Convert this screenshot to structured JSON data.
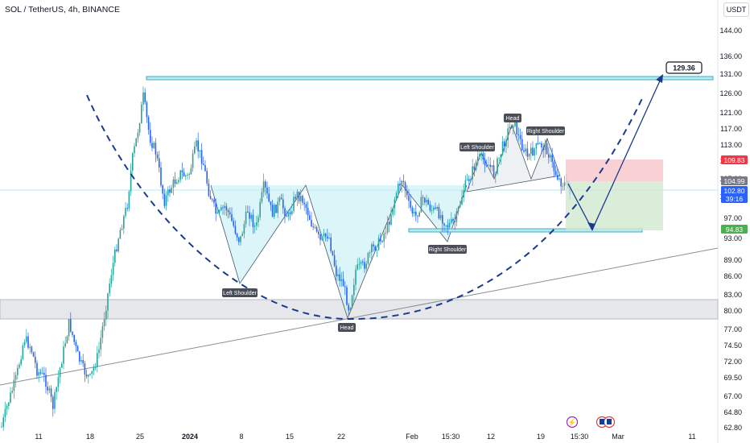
{
  "header": {
    "title": "SOL / TetherUS, 4h, BINANCE",
    "unit": "USDT"
  },
  "chart_data": {
    "type": "candlestick",
    "y_axis": {
      "ticks": [
        144.0,
        136.0,
        131.0,
        126.0,
        121.0,
        117.0,
        113.0,
        109.0,
        105.0,
        101.0,
        97.0,
        93.0,
        89.0,
        86.0,
        83.0,
        80.0,
        77.0,
        74.5,
        72.0,
        69.5,
        67.0,
        64.8,
        62.8
      ]
    },
    "x_axis": {
      "labels": [
        {
          "text": "11",
          "bold": false
        },
        {
          "text": "18",
          "bold": false
        },
        {
          "text": "25",
          "bold": false
        },
        {
          "text": "2024",
          "bold": true
        },
        {
          "text": "8",
          "bold": false
        },
        {
          "text": "15",
          "bold": false
        },
        {
          "text": "22",
          "bold": false
        },
        {
          "text": "Feb",
          "bold": false
        },
        {
          "text": "15:30",
          "bold": false
        },
        {
          "text": "12",
          "bold": false
        },
        {
          "text": "19",
          "bold": false
        },
        {
          "text": "15:30",
          "bold": false
        },
        {
          "text": "Mar",
          "bold": false
        },
        {
          "text": "11",
          "bold": false
        }
      ]
    },
    "price_tags": [
      {
        "label": "109.83",
        "color": "#f23645"
      },
      {
        "label": "104.99",
        "color": "#787b86"
      },
      {
        "label": "102.80",
        "color": "#2962ff"
      },
      {
        "label": "39:16",
        "color": "#2962ff"
      },
      {
        "label": "94.83",
        "color": "#4caf50"
      }
    ],
    "target": "129.36",
    "resistance_level": 129.36,
    "neckline_level": 104.99,
    "support_zone": [
      79.5,
      82.5
    ],
    "trade_setup": {
      "entry": 104.99,
      "stop": 109.83,
      "take_profit": 94.83
    },
    "pattern_labels": {
      "left_shoulder_big": "Left Shoulder",
      "head_big": "Head",
      "right_shoulder_small": "Right Shoulder",
      "left_shoulder_small": "Left Shoulder",
      "head_small": "Head",
      "right_shoulder_top": "Right Shoulder"
    },
    "colors": {
      "up": "#26a69a",
      "down": "#2962ff",
      "candle": "#1e53e5",
      "curve": "#1a3a8f",
      "zone": "#b2ebf2"
    }
  }
}
